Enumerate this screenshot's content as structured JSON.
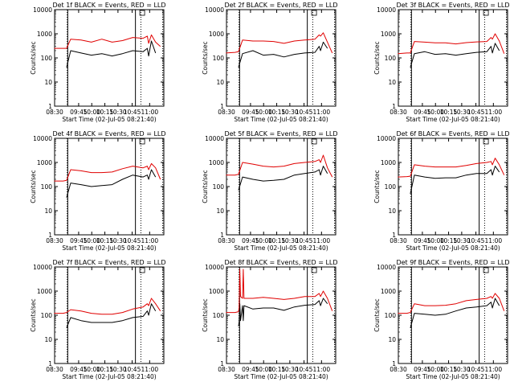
{
  "colors": {
    "events": "#000000",
    "lld": "#e00000",
    "axis": "#000000",
    "background": "#ffffff"
  },
  "chart_data": [
    {
      "type": "line",
      "title": "Det 1f BLACK = Events, RED = LLD",
      "xlabel": "Start Time (02-Jul-05 08:21:40)",
      "ylabel": "Counts/sec",
      "xticks": [
        "08:30",
        "09:45",
        "10:00",
        "10:15",
        "10:30",
        "10:45",
        "11:00"
      ],
      "yticks": [
        "1",
        "10",
        "100",
        "1000",
        "10000"
      ],
      "ylog": true,
      "ylim": [
        1,
        10000
      ],
      "x": [
        "08:21",
        "08:34",
        "08:39",
        "08:45",
        "09:00",
        "09:15",
        "09:30",
        "09:45",
        "10:00",
        "10:15",
        "10:30",
        "10:36",
        "10:38",
        "10:42",
        "10:48",
        "10:55"
      ],
      "series": [
        {
          "name": "BLACK = Events",
          "values": [
            null,
            null,
            40,
            200,
            160,
            130,
            150,
            120,
            150,
            200,
            180,
            250,
            120,
            500,
            160,
            null
          ]
        },
        {
          "name": "RED = LLD",
          "values": [
            250,
            250,
            250,
            600,
            550,
            450,
            600,
            450,
            520,
            700,
            650,
            800,
            400,
            900,
            450,
            300
          ]
        }
      ]
    },
    {
      "type": "line",
      "title": "Det 2f BLACK = Events, RED = LLD",
      "xlabel": "Start Time (02-Jul-05 08:21:40)",
      "ylabel": "Counts/sec",
      "xticks": [
        "08:30",
        "09:45",
        "10:00",
        "10:15",
        "10:30",
        "10:45",
        "11:00"
      ],
      "yticks": [
        "1",
        "10",
        "100",
        "1000",
        "10000"
      ],
      "ylog": true,
      "ylim": [
        1,
        10000
      ],
      "x": [
        "08:21",
        "08:34",
        "08:39",
        "08:45",
        "09:00",
        "09:15",
        "09:30",
        "09:45",
        "10:00",
        "10:15",
        "10:30",
        "10:36",
        "10:38",
        "10:42",
        "10:48",
        "10:55"
      ],
      "series": [
        {
          "name": "BLACK = Events",
          "values": [
            null,
            null,
            40,
            150,
            200,
            130,
            140,
            110,
            140,
            160,
            170,
            300,
            200,
            450,
            250,
            null
          ]
        },
        {
          "name": "RED = LLD",
          "values": [
            160,
            170,
            180,
            550,
            500,
            500,
            480,
            400,
            500,
            550,
            600,
            900,
            800,
            1100,
            450,
            160
          ]
        }
      ]
    },
    {
      "type": "line",
      "title": "Det 3f BLACK = Events, RED = LLD",
      "xlabel": "Start Time (02-Jul-05 08:21:40)",
      "ylabel": "Counts/sec",
      "xticks": [
        "08:30",
        "09:45",
        "10:00",
        "10:15",
        "10:30",
        "10:45",
        "11:00"
      ],
      "yticks": [
        "1",
        "10",
        "100",
        "1000",
        "10000"
      ],
      "ylog": true,
      "ylim": [
        1,
        10000
      ],
      "x": [
        "08:21",
        "08:34",
        "08:39",
        "08:45",
        "09:00",
        "09:15",
        "09:30",
        "09:45",
        "10:00",
        "10:15",
        "10:30",
        "10:36",
        "10:38",
        "10:42",
        "10:48",
        "10:55"
      ],
      "series": [
        {
          "name": "BLACK = Events",
          "values": [
            null,
            null,
            40,
            150,
            180,
            140,
            150,
            130,
            150,
            170,
            180,
            300,
            160,
            400,
            200,
            null
          ]
        },
        {
          "name": "RED = LLD",
          "values": [
            150,
            160,
            160,
            480,
            450,
            420,
            420,
            380,
            430,
            460,
            480,
            700,
            600,
            1000,
            500,
            150
          ]
        }
      ]
    },
    {
      "type": "line",
      "title": "Det 4f BLACK = Events, RED = LLD",
      "xlabel": "Start Time (02-Jul-05 08:21:40)",
      "ylabel": "Counts/sec",
      "xticks": [
        "08:30",
        "09:45",
        "10:00",
        "10:15",
        "10:30",
        "10:45",
        "11:00"
      ],
      "yticks": [
        "1",
        "10",
        "100",
        "1000",
        "10000"
      ],
      "ylog": true,
      "ylim": [
        1,
        10000
      ],
      "x": [
        "08:21",
        "08:34",
        "08:39",
        "08:45",
        "09:00",
        "09:15",
        "09:30",
        "09:45",
        "10:00",
        "10:15",
        "10:30",
        "10:36",
        "10:38",
        "10:42",
        "10:48",
        "10:55"
      ],
      "series": [
        {
          "name": "BLACK = Events",
          "values": [
            null,
            null,
            35,
            140,
            120,
            100,
            110,
            120,
            200,
            300,
            250,
            300,
            200,
            500,
            250,
            null
          ]
        },
        {
          "name": "RED = LLD",
          "values": [
            170,
            170,
            180,
            500,
            450,
            380,
            380,
            400,
            550,
            700,
            600,
            700,
            500,
            900,
            600,
            200
          ]
        }
      ]
    },
    {
      "type": "line",
      "title": "Det 5f BLACK = Events, RED = LLD",
      "xlabel": "Start Time (02-Jul-05 08:21:40)",
      "ylabel": "Counts/sec",
      "xticks": [
        "08:30",
        "09:45",
        "10:00",
        "10:15",
        "10:30",
        "10:45",
        "11:00"
      ],
      "yticks": [
        "1",
        "10",
        "100",
        "1000",
        "10000"
      ],
      "ylog": true,
      "ylim": [
        1,
        10000
      ],
      "x": [
        "08:21",
        "08:34",
        "08:39",
        "08:45",
        "09:00",
        "09:15",
        "09:30",
        "09:45",
        "10:00",
        "10:15",
        "10:30",
        "10:36",
        "10:38",
        "10:42",
        "10:48",
        "10:55"
      ],
      "series": [
        {
          "name": "BLACK = Events",
          "values": [
            null,
            null,
            70,
            250,
            200,
            170,
            180,
            200,
            300,
            350,
            400,
            500,
            300,
            700,
            350,
            null
          ]
        },
        {
          "name": "RED = LLD",
          "values": [
            300,
            300,
            320,
            1000,
            850,
            700,
            650,
            700,
            900,
            1000,
            1100,
            1300,
            1000,
            2000,
            600,
            250
          ]
        }
      ]
    },
    {
      "type": "line",
      "title": "Det 6f BLACK = Events, RED = LLD",
      "xlabel": "Start Time (02-Jul-05 08:21:40)",
      "ylabel": "Counts/sec",
      "xticks": [
        "08:30",
        "09:45",
        "10:00",
        "10:15",
        "10:30",
        "10:45",
        "11:00"
      ],
      "yticks": [
        "1",
        "10",
        "100",
        "1000",
        "10000"
      ],
      "ylog": true,
      "ylim": [
        1,
        10000
      ],
      "x": [
        "08:21",
        "08:34",
        "08:39",
        "08:45",
        "09:00",
        "09:15",
        "09:30",
        "09:45",
        "10:00",
        "10:15",
        "10:30",
        "10:36",
        "10:38",
        "10:42",
        "10:48",
        "10:55"
      ],
      "series": [
        {
          "name": "BLACK = Events",
          "values": [
            null,
            null,
            50,
            300,
            250,
            220,
            230,
            230,
            300,
            350,
            350,
            500,
            300,
            700,
            400,
            null
          ]
        },
        {
          "name": "RED = LLD",
          "values": [
            250,
            260,
            270,
            800,
            700,
            650,
            650,
            650,
            750,
            900,
            1000,
            1100,
            800,
            1500,
            800,
            300
          ]
        }
      ]
    },
    {
      "type": "line",
      "title": "Det 7f BLACK = Events, RED = LLD",
      "xlabel": "Start Time (02-Jul-05 08:21:40)",
      "ylabel": "Counts/sec",
      "xticks": [
        "08:30",
        "09:45",
        "10:00",
        "10:15",
        "10:30",
        "10:45",
        "11:00"
      ],
      "yticks": [
        "1",
        "10",
        "100",
        "1000",
        "10000"
      ],
      "ylog": true,
      "ylim": [
        1,
        10000
      ],
      "x": [
        "08:21",
        "08:34",
        "08:39",
        "08:45",
        "09:00",
        "09:15",
        "09:30",
        "09:45",
        "10:00",
        "10:15",
        "10:30",
        "10:36",
        "10:38",
        "10:42",
        "10:48",
        "10:55"
      ],
      "series": [
        {
          "name": "BLACK = Events",
          "values": [
            null,
            null,
            30,
            80,
            60,
            50,
            50,
            50,
            60,
            80,
            90,
            150,
            100,
            300,
            150,
            null
          ]
        },
        {
          "name": "RED = LLD",
          "values": [
            120,
            120,
            130,
            170,
            150,
            120,
            110,
            110,
            130,
            180,
            220,
            300,
            250,
            500,
            300,
            150
          ]
        }
      ]
    },
    {
      "type": "line",
      "title": "Det 8f BLACK = Events, RED = LLD",
      "xlabel": "Start Time (02-Jul-05 08:21:40)",
      "ylabel": "Counts/sec",
      "xticks": [
        "08:30",
        "09:45",
        "10:00",
        "10:15",
        "10:30",
        "10:45",
        "11:00"
      ],
      "yticks": [
        "1",
        "10",
        "100",
        "1000",
        "10000"
      ],
      "ylog": true,
      "ylim": [
        1,
        10000
      ],
      "x": [
        "08:21",
        "08:34",
        "08:39",
        "08:40",
        "08:41",
        "08:42",
        "08:45",
        "08:46",
        "08:47",
        "09:00",
        "09:15",
        "09:30",
        "09:45",
        "10:00",
        "10:15",
        "10:30",
        "10:36",
        "10:38",
        "10:42",
        "10:48",
        "10:55"
      ],
      "series": [
        {
          "name": "BLACK = Events",
          "values": [
            null,
            null,
            35,
            50,
            300,
            60,
            250,
            60,
            250,
            180,
            200,
            200,
            160,
            220,
            260,
            280,
            400,
            250,
            500,
            300,
            null
          ]
        },
        {
          "name": "RED = LLD",
          "values": [
            130,
            130,
            140,
            200,
            8000,
            600,
            500,
            8000,
            500,
            500,
            550,
            500,
            450,
            500,
            600,
            600,
            800,
            600,
            1000,
            500,
            150
          ]
        }
      ]
    },
    {
      "type": "line",
      "title": "Det 9f BLACK = Events, RED = LLD",
      "xlabel": "Start Time (02-Jul-05 08:21:40)",
      "ylabel": "Counts/sec",
      "xticks": [
        "08:30",
        "09:45",
        "10:00",
        "10:15",
        "10:30",
        "10:45",
        "11:00"
      ],
      "yticks": [
        "1",
        "10",
        "100",
        "1000",
        "10000"
      ],
      "ylog": true,
      "ylim": [
        1,
        10000
      ],
      "x": [
        "08:21",
        "08:34",
        "08:39",
        "08:45",
        "09:00",
        "09:15",
        "09:30",
        "09:45",
        "10:00",
        "10:15",
        "10:30",
        "10:36",
        "10:38",
        "10:42",
        "10:48",
        "10:55"
      ],
      "series": [
        {
          "name": "BLACK = Events",
          "values": [
            null,
            null,
            30,
            120,
            110,
            100,
            110,
            150,
            200,
            220,
            250,
            350,
            200,
            500,
            250,
            null
          ]
        },
        {
          "name": "RED = LLD",
          "values": [
            120,
            120,
            130,
            300,
            250,
            250,
            260,
            300,
            400,
            450,
            500,
            600,
            500,
            800,
            500,
            150
          ]
        }
      ]
    }
  ]
}
